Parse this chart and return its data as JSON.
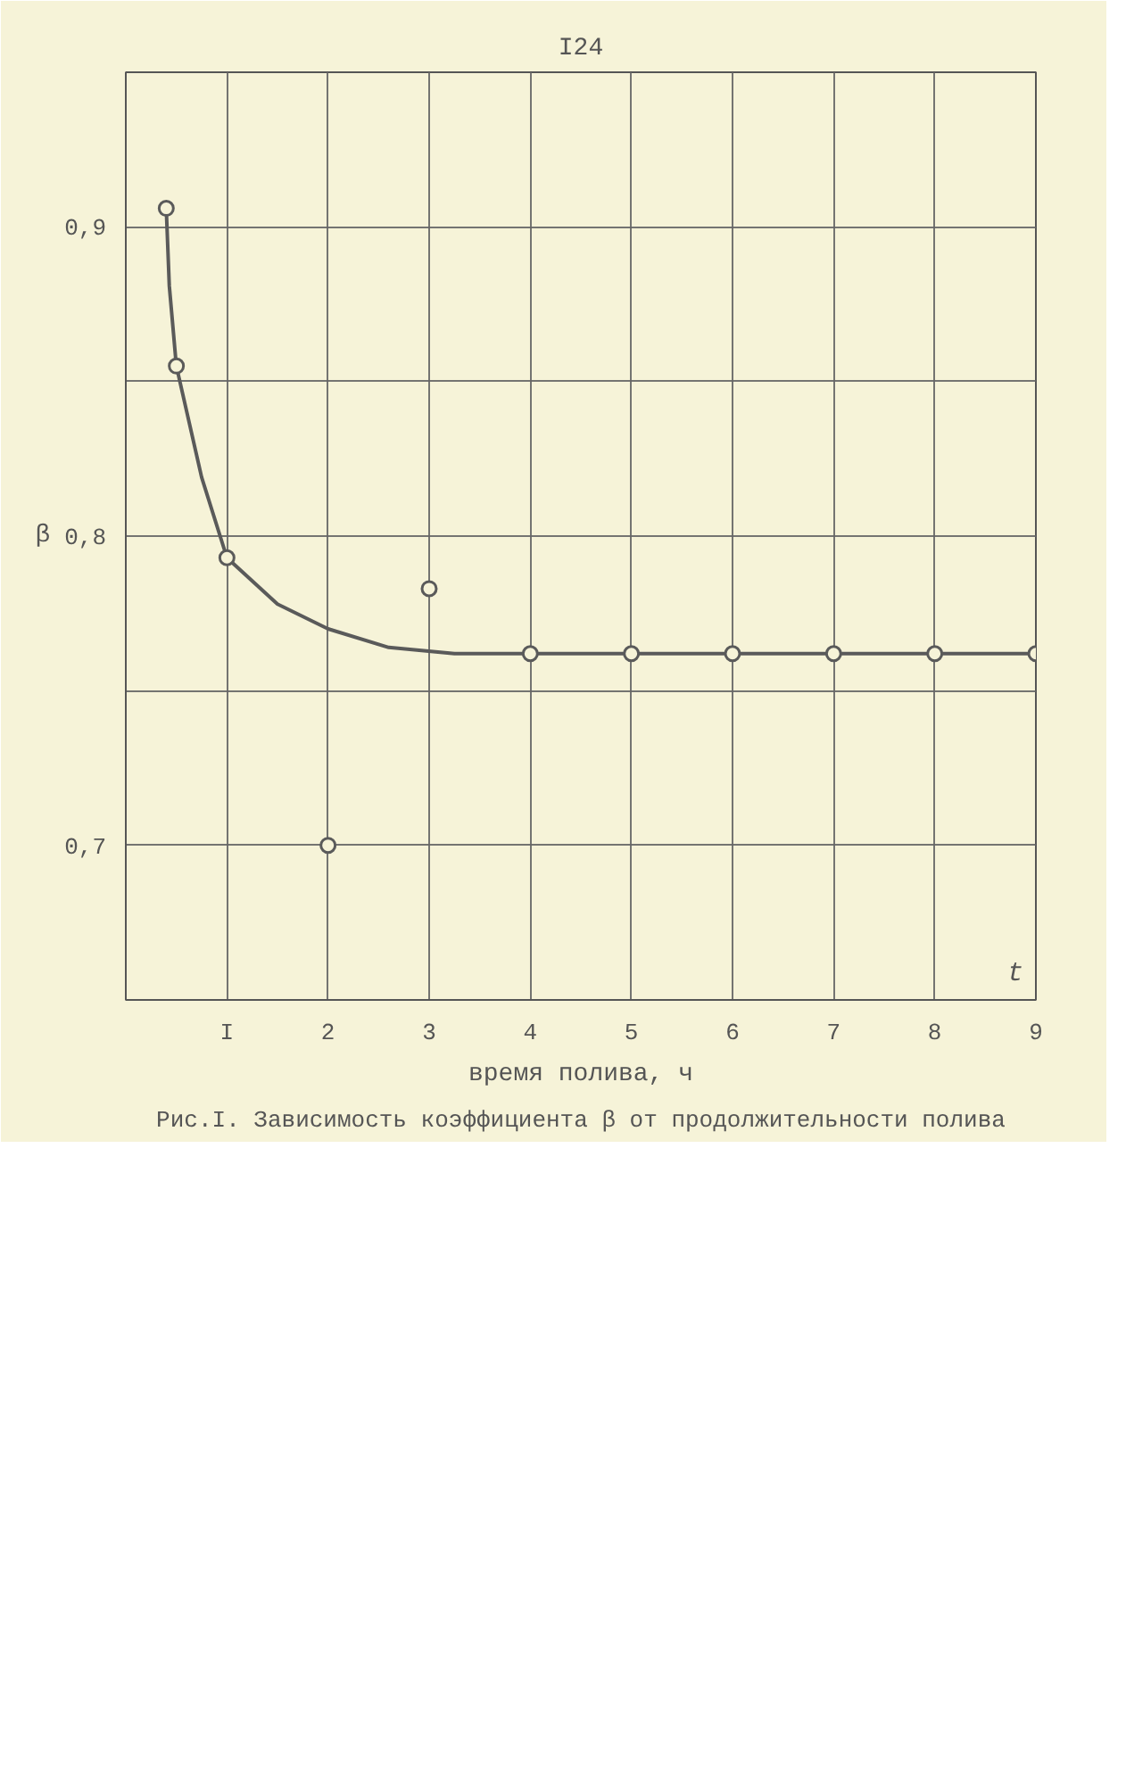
{
  "chart_data": {
    "type": "line",
    "title": "Рис.I. Зависимость коэффициента β от продолжительности полива",
    "xlabel": "время полива, ч",
    "ylabel": "β",
    "annotations": [
      "I24",
      "t"
    ],
    "xlim": [
      0,
      9
    ],
    "ylim": [
      0.65,
      0.95
    ],
    "xticks": [
      {
        "value": 0,
        "label": null
      },
      {
        "value": 1,
        "label": "I"
      },
      2,
      3,
      4,
      5,
      6,
      7,
      8,
      9
    ],
    "yticks": [
      {
        "value": 0.7,
        "label": "0,7"
      },
      {
        "value": 0.75,
        "label": null
      },
      {
        "value": 0.8,
        "label": "0,8"
      },
      {
        "value": 0.85,
        "label": null
      },
      {
        "value": 0.9,
        "label": "0,9"
      }
    ],
    "grid": true,
    "series": [
      {
        "marker": "none",
        "color": "#5a5a5a",
        "x": [
          0.4,
          0.43,
          0.5,
          0.75,
          1,
          1.5,
          2,
          2.6,
          3.25,
          4,
          5,
          6,
          7,
          8,
          9
        ],
        "values": [
          0.906,
          0.881,
          0.855,
          0.819,
          0.793,
          0.778,
          0.77,
          0.764,
          0.762,
          0.762,
          0.762,
          0.762,
          0.762,
          0.762,
          0.762
        ]
      },
      {
        "type": "scatter",
        "marker": "circle",
        "color": "#5a5a5a",
        "x": [
          0.4,
          0.5,
          1,
          2,
          3,
          4,
          5,
          6,
          7,
          8,
          9
        ],
        "values": [
          0.906,
          0.855,
          0.793,
          0.7,
          0.783,
          0.762,
          0.762,
          0.762,
          0.762,
          0.762,
          0.762
        ]
      }
    ]
  }
}
